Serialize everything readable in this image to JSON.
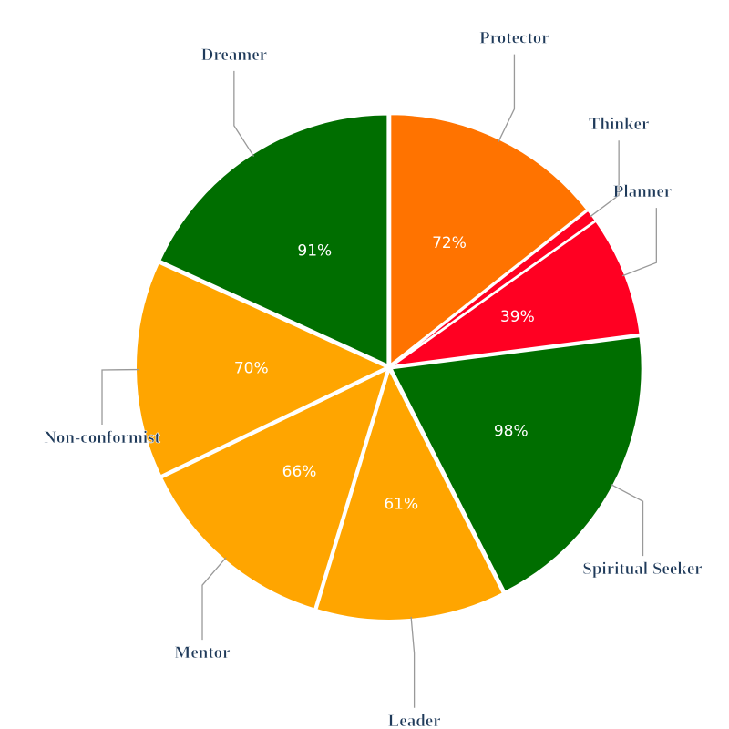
{
  "chart_data": {
    "type": "pie",
    "categories": [
      "Protector",
      "Thinker",
      "Planner",
      "Spiritual Seeker",
      "Leader",
      "Mentor",
      "Non-conformist",
      "Dreamer"
    ],
    "values": [
      72,
      4,
      39,
      98,
      61,
      66,
      70,
      91
    ],
    "value_labels": [
      "72%",
      null,
      "39%",
      "98%",
      "61%",
      "66%",
      "70%",
      "91%"
    ],
    "colors": [
      "#ff7300",
      "#ff0022",
      "#ff0022",
      "#006e00",
      "#ffa500",
      "#ffa500",
      "#ffa500",
      "#006e00"
    ]
  }
}
